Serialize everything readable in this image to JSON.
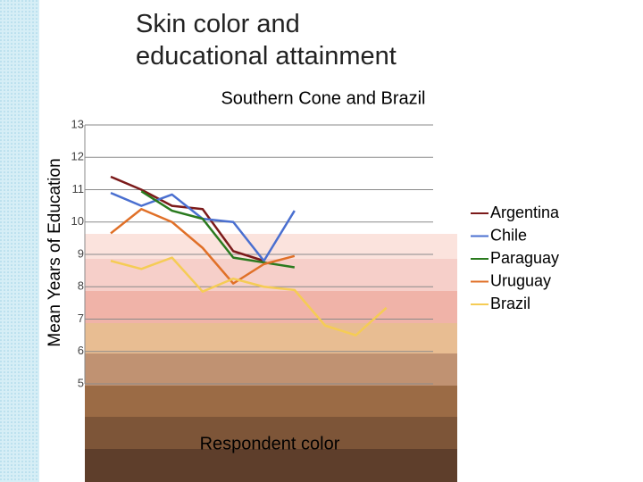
{
  "title": "Skin color and educational attainment",
  "chart_data": {
    "type": "line",
    "title": "Southern Cone and Brazil",
    "y_label": "Mean Years of Education",
    "x_label": "Respondent color",
    "categories": [
      null,
      null,
      null,
      null,
      null,
      null,
      null,
      null,
      null,
      null
    ],
    "series": [
      {
        "name": "Argentina",
        "color": "#7b1a1a",
        "values": [
          11.4,
          11.0,
          10.5,
          10.4,
          9.1,
          8.8,
          null,
          null,
          null,
          null
        ]
      },
      {
        "name": "Chile",
        "color": "#4a6fd0",
        "values": [
          10.9,
          10.5,
          10.85,
          10.1,
          10.0,
          8.8,
          10.35,
          null,
          null,
          null
        ]
      },
      {
        "name": "Paraguay",
        "color": "#2a7a1e",
        "values": [
          null,
          10.95,
          10.35,
          10.1,
          8.9,
          8.75,
          8.6,
          null,
          null,
          null
        ]
      },
      {
        "name": "Uruguay",
        "color": "#e07028",
        "values": [
          9.65,
          10.4,
          10.0,
          9.2,
          8.1,
          8.7,
          8.95,
          null,
          null,
          null
        ]
      },
      {
        "name": "Brazil",
        "color": "#f5cc55",
        "values": [
          8.8,
          8.55,
          8.9,
          7.85,
          8.25,
          8.0,
          7.9,
          6.8,
          6.5,
          7.35
        ]
      }
    ],
    "ylim": [
      5,
      13
    ],
    "yticks": [
      5,
      6,
      7,
      8,
      9,
      10,
      11,
      12,
      13
    ],
    "grid": true,
    "legend": "right"
  }
}
